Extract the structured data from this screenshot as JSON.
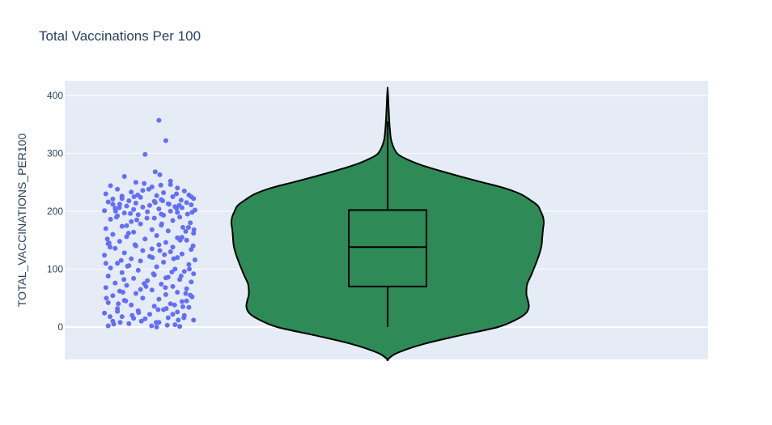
{
  "chart_data": {
    "type": "violin",
    "title": "Total Vaccinations Per 100",
    "ylabel": "TOTAL_VACCINATIONS_PER100",
    "xlabel": "",
    "ylim": [
      -56,
      425
    ],
    "yticks": [
      0,
      100,
      200,
      300,
      400
    ],
    "grid": true,
    "colors": {
      "plot_bg": "#E5ECF6",
      "grid": "#ffffff",
      "violin_fill": "#2E8B57",
      "violin_line": "#000000",
      "points": "#636EFA",
      "text": "#2a3f5f"
    },
    "box": {
      "q1": 70,
      "median": 138,
      "q3": 202,
      "whisker_low": 0,
      "whisker_high": 355
    },
    "violin_extent": [
      -56,
      412
    ],
    "violin_density": [
      [
        -56,
        0.0
      ],
      [
        -45,
        0.06
      ],
      [
        -30,
        0.22
      ],
      [
        -15,
        0.45
      ],
      [
        0,
        0.7
      ],
      [
        15,
        0.83
      ],
      [
        25,
        0.88
      ],
      [
        35,
        0.895
      ],
      [
        45,
        0.89
      ],
      [
        55,
        0.88
      ],
      [
        65,
        0.88
      ],
      [
        75,
        0.885
      ],
      [
        90,
        0.91
      ],
      [
        110,
        0.94
      ],
      [
        125,
        0.96
      ],
      [
        140,
        0.975
      ],
      [
        155,
        0.98
      ],
      [
        170,
        0.985
      ],
      [
        180,
        0.99
      ],
      [
        190,
        0.985
      ],
      [
        200,
        0.97
      ],
      [
        210,
        0.95
      ],
      [
        220,
        0.9
      ],
      [
        230,
        0.84
      ],
      [
        240,
        0.74
      ],
      [
        250,
        0.6
      ],
      [
        260,
        0.46
      ],
      [
        270,
        0.33
      ],
      [
        280,
        0.21
      ],
      [
        290,
        0.12
      ],
      [
        300,
        0.06
      ],
      [
        320,
        0.025
      ],
      [
        340,
        0.015
      ],
      [
        360,
        0.01
      ],
      [
        380,
        0.006
      ],
      [
        400,
        0.003
      ],
      [
        412,
        0.0
      ]
    ],
    "points": [
      [
        0.2,
        357
      ],
      [
        -0.1,
        298
      ],
      [
        0.35,
        322
      ],
      [
        0.12,
        268
      ],
      [
        0.22,
        263
      ],
      [
        -0.55,
        260
      ],
      [
        0.45,
        252
      ],
      [
        -0.3,
        250
      ],
      [
        -0.12,
        248
      ],
      [
        -0.85,
        244
      ],
      [
        0.05,
        242
      ],
      [
        0.6,
        240
      ],
      [
        -0.7,
        238
      ],
      [
        0.75,
        235
      ],
      [
        -0.4,
        233
      ],
      [
        0.3,
        232
      ],
      [
        -0.95,
        230
      ],
      [
        0.85,
        228
      ],
      [
        0.15,
        227
      ],
      [
        -0.6,
        226
      ],
      [
        0.5,
        225
      ],
      [
        -0.2,
        224
      ],
      [
        0.95,
        222
      ],
      [
        -0.8,
        221
      ],
      [
        0.25,
        220
      ],
      [
        0.68,
        219
      ],
      [
        -0.45,
        218
      ],
      [
        0.1,
        217
      ],
      [
        -0.9,
        216
      ],
      [
        0.8,
        215
      ],
      [
        -0.3,
        214
      ],
      [
        0.4,
        213
      ],
      [
        -0.65,
        212
      ],
      [
        0.9,
        211
      ],
      [
        0.0,
        210
      ],
      [
        -0.5,
        209
      ],
      [
        0.55,
        208
      ],
      [
        -0.15,
        207
      ],
      [
        0.7,
        206
      ],
      [
        -0.75,
        205
      ],
      [
        0.2,
        204
      ],
      [
        -0.35,
        203
      ],
      [
        0.98,
        202
      ],
      [
        -0.98,
        201
      ],
      [
        0.45,
        200
      ],
      [
        -0.05,
        199
      ],
      [
        0.6,
        198
      ],
      [
        -0.55,
        197
      ],
      [
        0.82,
        195
      ],
      [
        -0.25,
        194
      ],
      [
        0.3,
        193
      ],
      [
        -0.7,
        192
      ],
      [
        0.65,
        190
      ],
      [
        0.1,
        188
      ],
      [
        -0.85,
        186
      ],
      [
        0.5,
        184
      ],
      [
        -0.4,
        182
      ],
      [
        0.88,
        180
      ],
      [
        -0.2,
        178
      ],
      [
        0.25,
        176
      ],
      [
        -0.6,
        174
      ],
      [
        0.72,
        172
      ],
      [
        -0.95,
        170
      ],
      [
        0.05,
        168
      ],
      [
        0.4,
        166
      ],
      [
        -0.35,
        164
      ],
      [
        0.95,
        162
      ],
      [
        -0.8,
        160
      ],
      [
        0.15,
        158
      ],
      [
        -0.5,
        156
      ],
      [
        0.6,
        154
      ],
      [
        -0.1,
        152
      ],
      [
        0.8,
        150
      ],
      [
        -0.65,
        148
      ],
      [
        0.35,
        146
      ],
      [
        -0.9,
        144
      ],
      [
        0.2,
        142
      ],
      [
        -0.3,
        140
      ],
      [
        0.5,
        138
      ],
      [
        -0.75,
        136
      ],
      [
        0.9,
        134
      ],
      [
        -0.15,
        132
      ],
      [
        0.45,
        130
      ],
      [
        -0.55,
        128
      ],
      [
        0.7,
        126
      ],
      [
        -0.98,
        124
      ],
      [
        0.0,
        122
      ],
      [
        0.6,
        120
      ],
      [
        -0.4,
        118
      ],
      [
        0.98,
        116
      ],
      [
        -0.2,
        114
      ],
      [
        0.3,
        112
      ],
      [
        -0.7,
        110
      ],
      [
        0.85,
        108
      ],
      [
        -0.45,
        106
      ],
      [
        0.15,
        104
      ],
      [
        -0.85,
        102
      ],
      [
        0.55,
        100
      ],
      [
        -0.25,
        98
      ],
      [
        0.75,
        96
      ],
      [
        -0.6,
        94
      ],
      [
        0.95,
        92
      ],
      [
        0.1,
        90
      ],
      [
        -0.9,
        88
      ],
      [
        0.4,
        86
      ],
      [
        -0.35,
        84
      ],
      [
        0.65,
        82
      ],
      [
        -0.05,
        80
      ],
      [
        0.9,
        78
      ],
      [
        -0.75,
        76
      ],
      [
        0.25,
        74
      ],
      [
        -0.5,
        72
      ],
      [
        0.5,
        70
      ],
      [
        -0.95,
        68
      ],
      [
        0.8,
        66
      ],
      [
        0.05,
        64
      ],
      [
        -0.65,
        62
      ],
      [
        0.6,
        60
      ],
      [
        -0.3,
        58
      ],
      [
        0.35,
        56
      ],
      [
        -0.8,
        54
      ],
      [
        0.92,
        52
      ],
      [
        -0.15,
        50
      ],
      [
        0.2,
        48
      ],
      [
        -0.55,
        46
      ],
      [
        0.7,
        44
      ],
      [
        -0.9,
        42
      ],
      [
        0.45,
        40
      ],
      [
        -0.4,
        38
      ],
      [
        0.1,
        36
      ],
      [
        0.85,
        34
      ],
      [
        -0.7,
        32
      ],
      [
        0.3,
        30
      ],
      [
        -0.25,
        28
      ],
      [
        0.6,
        26
      ],
      [
        -0.98,
        24
      ],
      [
        0.0,
        22
      ],
      [
        0.75,
        20
      ],
      [
        -0.6,
        18
      ],
      [
        0.4,
        16
      ],
      [
        -0.1,
        14
      ],
      [
        0.95,
        12
      ],
      [
        -0.8,
        10
      ],
      [
        0.2,
        8
      ],
      [
        -0.45,
        6
      ],
      [
        0.55,
        4
      ],
      [
        -0.9,
        2
      ],
      [
        0.65,
        1
      ],
      [
        0.15,
        0
      ],
      [
        -0.35,
        15
      ],
      [
        0.5,
        22
      ],
      [
        -0.7,
        27
      ],
      [
        0.8,
        45
      ],
      [
        -0.2,
        65
      ],
      [
        0.35,
        85
      ],
      [
        -0.95,
        110
      ],
      [
        0.05,
        135
      ],
      [
        0.7,
        155
      ],
      [
        -0.5,
        175
      ],
      [
        0.25,
        195
      ],
      [
        -0.8,
        212
      ],
      [
        0.9,
        225
      ],
      [
        -0.15,
        236
      ],
      [
        0.45,
        246
      ],
      [
        -0.6,
        222
      ],
      [
        0.12,
        215
      ],
      [
        0.58,
        205
      ],
      [
        -0.28,
        185
      ],
      [
        0.78,
        165
      ],
      [
        -0.88,
        145
      ],
      [
        0.32,
        125
      ],
      [
        -0.48,
        105
      ],
      [
        0.68,
        88
      ],
      [
        -0.08,
        70
      ],
      [
        0.88,
        55
      ],
      [
        -0.68,
        40
      ],
      [
        0.18,
        30
      ],
      [
        -0.38,
        20
      ],
      [
        0.62,
        12
      ],
      [
        -0.78,
        5
      ],
      [
        0.38,
        3
      ],
      [
        -0.18,
        10
      ],
      [
        0.72,
        35
      ],
      [
        -0.58,
        60
      ],
      [
        0.08,
        92
      ],
      [
        0.52,
        118
      ],
      [
        -0.32,
        142
      ],
      [
        0.96,
        168
      ],
      [
        -0.72,
        190
      ],
      [
        0.28,
        218
      ],
      [
        -0.02,
        238
      ],
      [
        0.64,
        210
      ],
      [
        -0.42,
        196
      ],
      [
        0.84,
        172
      ],
      [
        -0.92,
        152
      ],
      [
        0.22,
        132
      ],
      [
        -0.62,
        115
      ],
      [
        0.48,
        95
      ],
      [
        -0.12,
        75
      ],
      [
        0.78,
        58
      ],
      [
        -0.52,
        45
      ],
      [
        0.36,
        32
      ],
      [
        -0.86,
        18
      ],
      [
        0.14,
        8
      ],
      [
        0.58,
        230
      ],
      [
        -0.26,
        228
      ],
      [
        0.42,
        212
      ],
      [
        -0.66,
        206
      ],
      [
        0.92,
        198
      ],
      [
        -0.06,
        188
      ],
      [
        0.26,
        178
      ],
      [
        -0.46,
        162
      ],
      [
        0.66,
        150
      ],
      [
        -0.86,
        138
      ],
      [
        0.06,
        120
      ],
      [
        0.86,
        100
      ],
      [
        -0.56,
        82
      ],
      [
        0.34,
        68
      ],
      [
        -0.94,
        50
      ],
      [
        0.54,
        38
      ],
      [
        -0.24,
        25
      ],
      [
        0.74,
        16
      ],
      [
        -0.64,
        8
      ],
      [
        0.04,
        2
      ],
      [
        -0.34,
        225
      ],
      [
        0.24,
        245
      ],
      [
        -0.74,
        200
      ],
      [
        0.94,
        140
      ]
    ]
  }
}
